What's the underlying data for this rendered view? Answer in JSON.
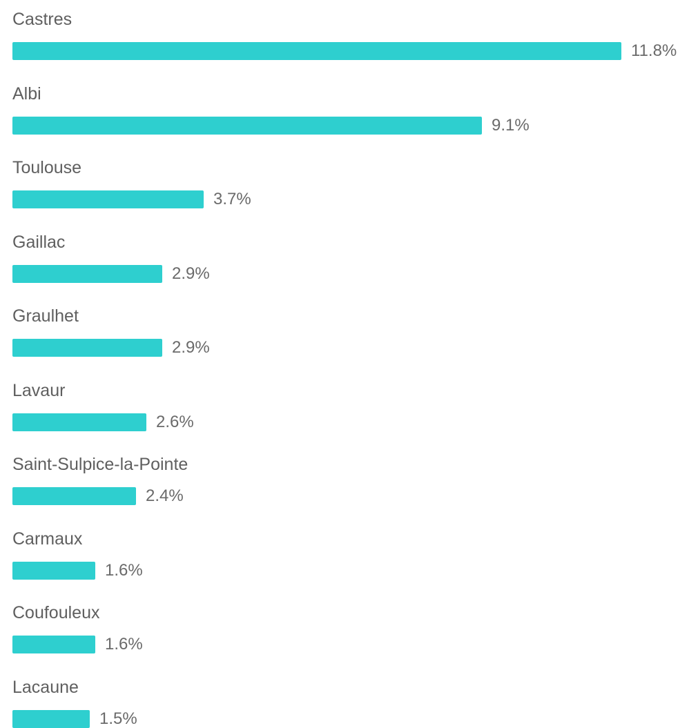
{
  "chart_data": {
    "type": "bar",
    "orientation": "horizontal",
    "categories": [
      "Castres",
      "Albi",
      "Toulouse",
      "Gaillac",
      "Graulhet",
      "Lavaur",
      "Saint-Sulpice-la-Pointe",
      "Carmaux",
      "Coufouleux",
      "Lacaune"
    ],
    "values": [
      11.8,
      9.1,
      3.7,
      2.9,
      2.9,
      2.6,
      2.4,
      1.6,
      1.6,
      1.5
    ],
    "value_labels": [
      "11.8%",
      "9.1%",
      "3.7%",
      "2.9%",
      "2.9%",
      "2.6%",
      "2.4%",
      "1.6%",
      "1.6%",
      "1.5%"
    ],
    "xlim": [
      0,
      11.8
    ],
    "grid": false,
    "legend": "none",
    "bar_color": "#2ecfcf"
  }
}
